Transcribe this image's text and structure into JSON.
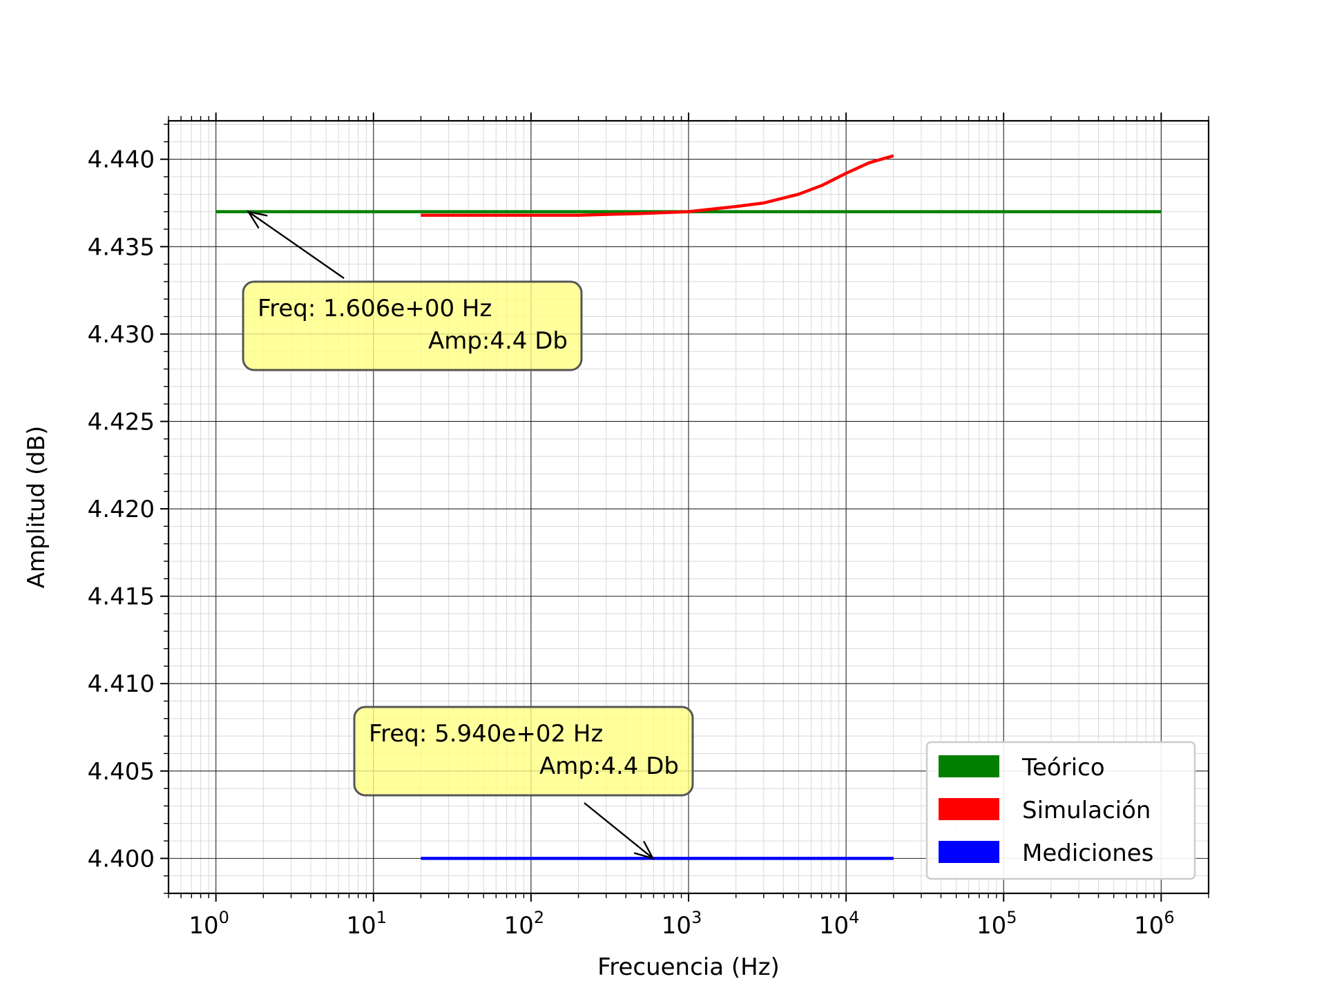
{
  "chart_data": {
    "type": "line",
    "xlabel": "Frecuencia (Hz)",
    "ylabel": "Amplitud (dB)",
    "xscale": "log",
    "xlim": [
      0.5,
      2000000
    ],
    "ylim": [
      4.398,
      4.4422
    ],
    "grid": "major and minor",
    "x_ticks": [
      1,
      10,
      100,
      1000,
      10000,
      100000,
      1000000
    ],
    "x_tick_labels": [
      {
        "base": "10",
        "exp": "0"
      },
      {
        "base": "10",
        "exp": "1"
      },
      {
        "base": "10",
        "exp": "2"
      },
      {
        "base": "10",
        "exp": "3"
      },
      {
        "base": "10",
        "exp": "4"
      },
      {
        "base": "10",
        "exp": "5"
      },
      {
        "base": "10",
        "exp": "6"
      }
    ],
    "y_ticks": [
      4.4,
      4.405,
      4.41,
      4.415,
      4.42,
      4.425,
      4.43,
      4.435,
      4.44
    ],
    "y_tick_labels": [
      "4.400",
      "4.405",
      "4.410",
      "4.415",
      "4.420",
      "4.425",
      "4.430",
      "4.435",
      "4.440"
    ],
    "series": [
      {
        "name": "Teórico",
        "color": "#008000",
        "x": [
          1,
          1000000
        ],
        "y": [
          4.437,
          4.437
        ]
      },
      {
        "name": "Simulación",
        "color": "#ff0000",
        "x": [
          20,
          50,
          100,
          200,
          500,
          1000,
          2000,
          3000,
          5000,
          7000,
          10000,
          14000,
          20000
        ],
        "y": [
          4.4368,
          4.4368,
          4.4368,
          4.4368,
          4.4369,
          4.437,
          4.4373,
          4.4375,
          4.438,
          4.4385,
          4.4392,
          4.4398,
          4.4402
        ]
      },
      {
        "name": "Mediciones",
        "color": "#0000ff",
        "x": [
          20,
          20000
        ],
        "y": [
          4.4,
          4.4
        ]
      }
    ],
    "legend": {
      "position": "lower-right",
      "entries": [
        "Teórico",
        "Simulación",
        "Mediciones"
      ]
    },
    "annotations": [
      {
        "line1": "Freq: 1.606e+00  Hz",
        "line2": "Amp:4.4 Db",
        "point_x": 1.606,
        "point_y": 4.437,
        "box_color": "#ffff80"
      },
      {
        "line1": "Freq: 5.940e+02  Hz",
        "line2": "Amp:4.4 Db",
        "point_x": 594.0,
        "point_y": 4.4,
        "box_color": "#ffff80"
      }
    ]
  }
}
